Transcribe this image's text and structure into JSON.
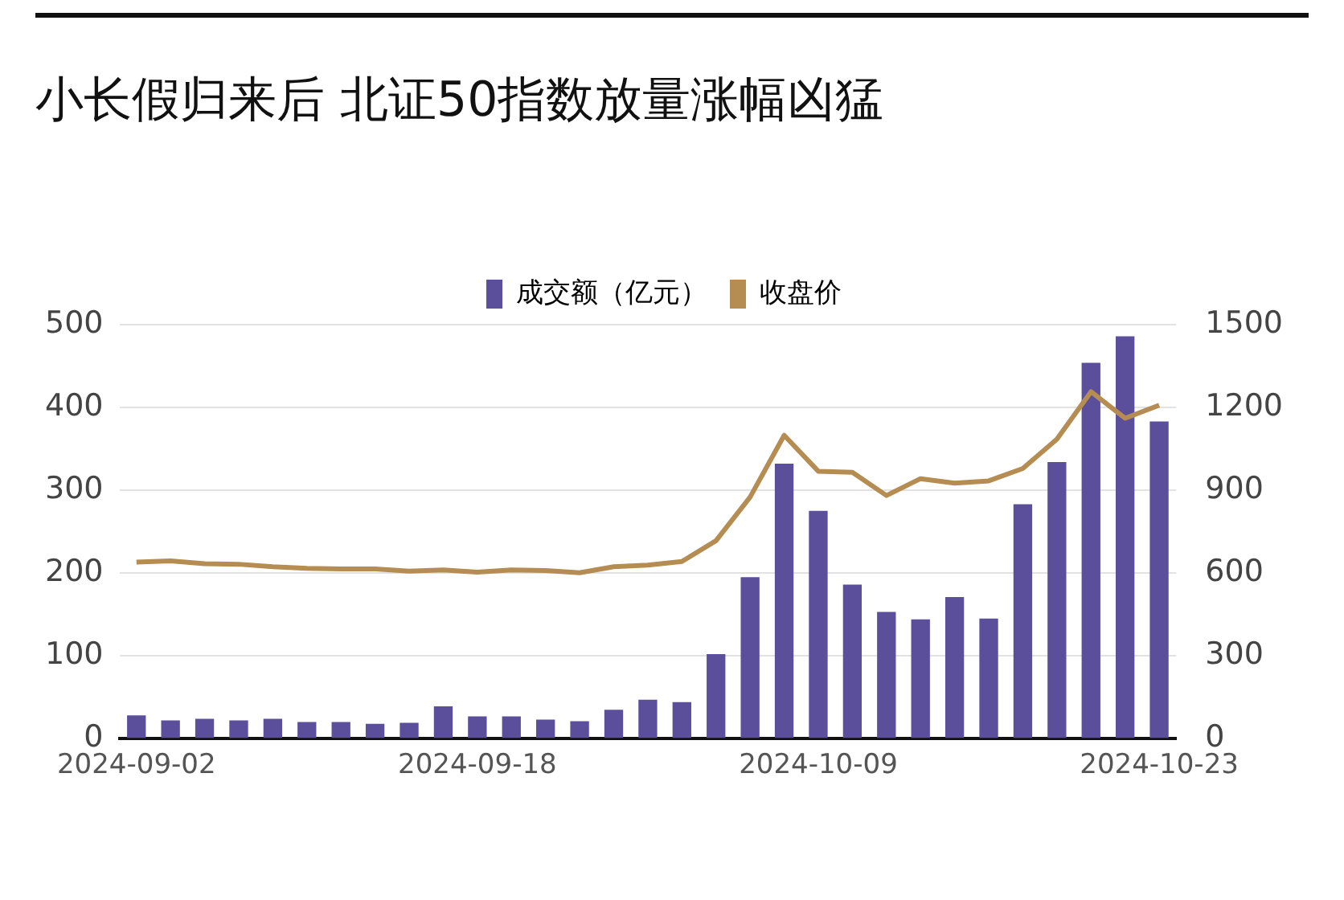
{
  "chart_data": {
    "type": "bar",
    "title": "小长假归来后 北证50指数放量涨幅凶猛",
    "categories": [
      "2024-09-02",
      null,
      null,
      null,
      null,
      null,
      null,
      null,
      null,
      null,
      "2024-09-18",
      null,
      null,
      null,
      null,
      null,
      null,
      null,
      null,
      null,
      "2024-10-09",
      null,
      null,
      null,
      null,
      null,
      null,
      null,
      null,
      null,
      "2024-10-23"
    ],
    "series": [
      {
        "name": "成交额（亿元）",
        "color": "#5b4e9b",
        "values": [
          28,
          22,
          24,
          22,
          24,
          20,
          20,
          18,
          19,
          39,
          27,
          27,
          23,
          21,
          35,
          47,
          44,
          102,
          195,
          332,
          275,
          186,
          153,
          144,
          171,
          145,
          283,
          334,
          454,
          486,
          383
        ]
      },
      {
        "name": "收盘价",
        "type": "line",
        "axis": "y2",
        "color": "#b58c52",
        "values": [
          640,
          644,
          634,
          632,
          623,
          617,
          615,
          615,
          607,
          611,
          603,
          611,
          609,
          601,
          623,
          629,
          642,
          717,
          875,
          1099,
          969,
          965,
          881,
          942,
          926,
          934,
          979,
          1085,
          1257,
          1161,
          1208
        ]
      }
    ],
    "ylim": [
      0,
      500
    ],
    "yticks": [
      0,
      100,
      200,
      300,
      400,
      500
    ],
    "y2lim": [
      0,
      1500
    ],
    "y2ticks": [
      0,
      300,
      600,
      900,
      1200,
      1500
    ],
    "grid": "y",
    "legend": "top",
    "marker": "none",
    "line_style": "solid"
  }
}
